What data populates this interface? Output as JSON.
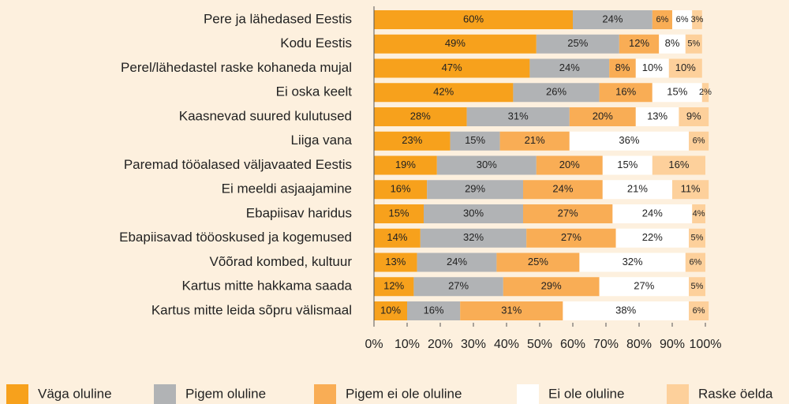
{
  "chart_data": {
    "type": "stacked_barh",
    "categories": [
      "Pere ja lähedased Eestis",
      "Kodu Eestis",
      "Perel/lähedastel raske kohaneda mujal",
      "Ei oska keelt",
      "Kaasnevad suured kulutused",
      "Liiga vana",
      "Paremad tööalased väljavaated Eestis",
      "Ei meeldi asjaajamine",
      "Ebapiisav haridus",
      "Ebapiisavad tööoskused ja kogemused",
      "Võõrad kombed, kultuur",
      "Kartus mitte hakkama saada",
      "Kartus mitte leida sõpru välismaal"
    ],
    "series": [
      {
        "name": "Väga oluline",
        "color": "#f7a11c",
        "values": [
          60,
          49,
          47,
          42,
          28,
          23,
          19,
          16,
          15,
          14,
          13,
          12,
          10
        ],
        "value_labels": [
          "60%",
          "49%",
          "47%",
          "42%",
          "28%",
          "23%",
          "19%",
          "16%",
          "15%",
          "14%",
          "13%",
          "12%",
          "10%"
        ]
      },
      {
        "name": "Pigem oluline",
        "color": "#b1b3b5",
        "values": [
          24,
          25,
          24,
          26,
          31,
          15,
          30,
          29,
          30,
          32,
          24,
          27,
          16
        ],
        "value_labels": [
          "24%",
          "25%",
          "24%",
          "26%",
          "31%",
          "15%",
          "30%",
          "29%",
          "30%",
          "32%",
          "24%",
          "27%",
          "16%"
        ]
      },
      {
        "name": "Pigem ei ole oluline",
        "color": "#f9ad55",
        "values": [
          6,
          12,
          8,
          16,
          20,
          21,
          20,
          24,
          27,
          27,
          25,
          29,
          31
        ],
        "value_labels": [
          "6%",
          "12%",
          "8%",
          "16%",
          "20%",
          "21%",
          "20%",
          "24%",
          "27%",
          "27%",
          "25%",
          "29%",
          "31%"
        ]
      },
      {
        "name": "Ei ole oluline",
        "color": "#ffffff",
        "values": [
          6,
          8,
          10,
          15,
          13,
          36,
          15,
          21,
          24,
          22,
          32,
          27,
          38
        ],
        "value_labels": [
          "6%",
          "8%",
          "10%",
          "15%",
          "13%",
          "36%",
          "15%",
          "21%",
          "24%",
          "22%",
          "32%",
          "27%",
          "38%"
        ]
      },
      {
        "name": "Raske öelda",
        "color": "#fdd09b",
        "values": [
          3,
          5,
          10,
          2,
          9,
          6,
          16,
          11,
          4,
          5,
          6,
          5,
          6
        ],
        "value_labels": [
          "3%",
          "5%",
          "10%",
          "2%",
          "9%",
          "6%",
          "16%",
          "11%",
          "4%",
          "5%",
          "6%",
          "5%",
          "6%"
        ]
      }
    ],
    "xlim": [
      0,
      100
    ],
    "xticks": [
      {
        "value": 0,
        "label": "0%"
      },
      {
        "value": 10,
        "label": "10%"
      },
      {
        "value": 20,
        "label": "20%"
      },
      {
        "value": 30,
        "label": "30%"
      },
      {
        "value": 40,
        "label": "40%"
      },
      {
        "value": 50,
        "label": "50%"
      },
      {
        "value": 60,
        "label": "60%"
      },
      {
        "value": 70,
        "label": "70%"
      },
      {
        "value": 80,
        "label": "80%"
      },
      {
        "value": 90,
        "label": "90%"
      },
      {
        "value": 100,
        "label": "100%"
      }
    ],
    "legend": "bottom"
  }
}
